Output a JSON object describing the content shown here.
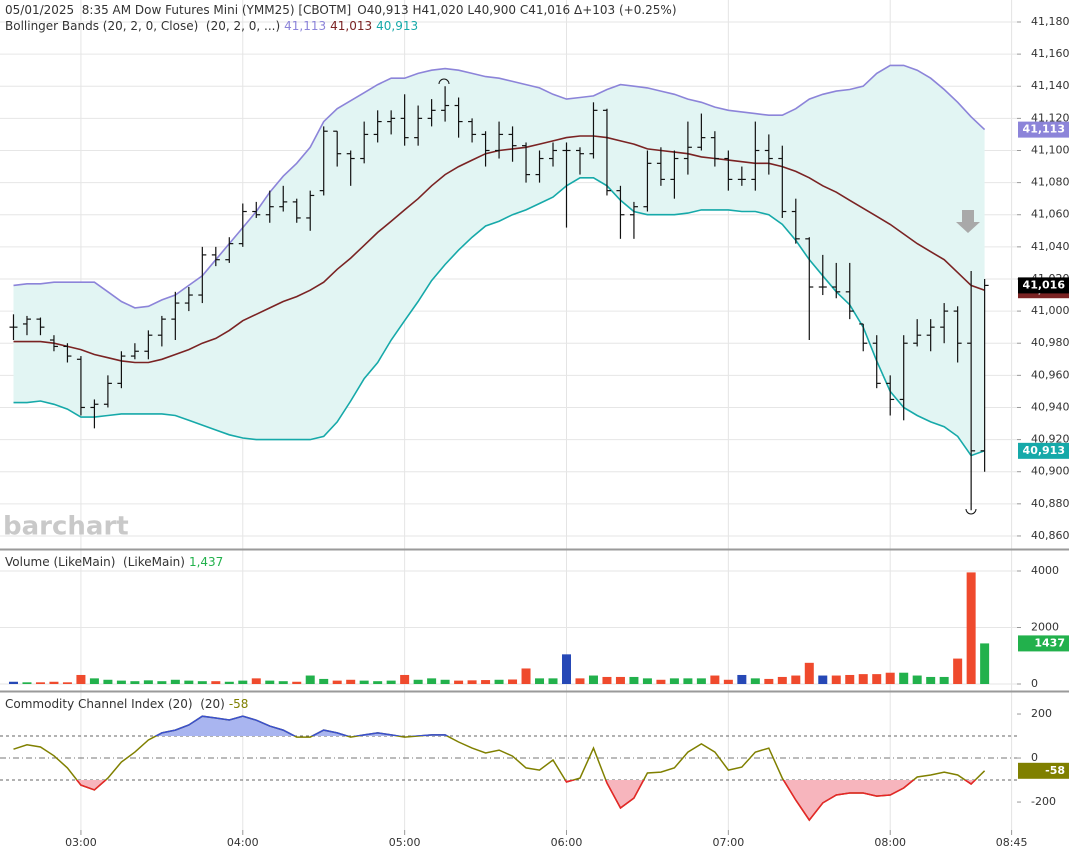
{
  "chart_data": {
    "type": "stock",
    "title": "05/01/2025  8:35 AM Dow Futures Mini (YMM25) [CBOTM]",
    "quote": "O40,913 H41,020 L40,900 C41,016 Δ+103 (+0.25%)",
    "watermark": "barchart",
    "x": [
      155,
      160,
      165,
      170,
      175,
      180,
      185,
      190,
      195,
      200,
      205,
      210,
      215,
      220,
      225,
      230,
      235,
      240,
      245,
      250,
      255,
      260,
      265,
      270,
      275,
      280,
      285,
      290,
      295,
      300,
      305,
      310,
      315,
      320,
      325,
      330,
      335,
      340,
      345,
      350,
      355,
      360,
      365,
      370,
      375,
      380,
      385,
      390,
      395,
      400,
      405,
      410,
      415,
      420,
      425,
      430,
      435,
      440,
      445,
      450,
      455,
      460,
      465,
      470,
      475,
      480,
      485,
      490,
      495,
      500,
      505,
      510,
      515
    ],
    "xlim": [
      150,
      527
    ],
    "xticks": [
      {
        "value": 180,
        "label": "03:00"
      },
      {
        "value": 240,
        "label": "04:00"
      },
      {
        "value": 300,
        "label": "05:00"
      },
      {
        "value": 360,
        "label": "06:00"
      },
      {
        "value": 420,
        "label": "07:00"
      },
      {
        "value": 480,
        "label": "08:00"
      },
      {
        "value": 525,
        "label": "08:45"
      }
    ],
    "grid": true,
    "panels": [
      {
        "type": "ohlc",
        "legend": "Bollinger Bands (20, 2, 0, Close)  (20, 2, 0, ...)",
        "color": "#111111",
        "last_label": "41,016",
        "ylim": [
          40852.5,
          41193.7
        ],
        "yticks": [
          {
            "value": 40860,
            "label": "40,860"
          },
          {
            "value": 40880,
            "label": "40,880"
          },
          {
            "value": 40900,
            "label": "40,900"
          },
          {
            "value": 40920,
            "label": "40,920"
          },
          {
            "value": 40940,
            "label": "40,940"
          },
          {
            "value": 40960,
            "label": "40,960"
          },
          {
            "value": 40980,
            "label": "40,980"
          },
          {
            "value": 41000,
            "label": "41,000"
          },
          {
            "value": 41020,
            "label": "41,020"
          },
          {
            "value": 41040,
            "label": "41,040"
          },
          {
            "value": 41060,
            "label": "41,060"
          },
          {
            "value": 41080,
            "label": "41,080"
          },
          {
            "value": 41100,
            "label": "41,100"
          },
          {
            "value": 41120,
            "label": "41,120"
          },
          {
            "value": 41140,
            "label": "41,140"
          },
          {
            "value": 41160,
            "label": "41,160"
          },
          {
            "value": 41180,
            "label": "41,180"
          }
        ],
        "open": [
          40990,
          40992,
          40995,
          40982,
          40978,
          40970,
          40940,
          40942,
          40955,
          40972,
          40975,
          40985,
          40995,
          41005,
          41010,
          41035,
          41032,
          41042,
          41062,
          41060,
          41065,
          41068,
          41058,
          41075,
          41112,
          41098,
          41095,
          41110,
          41118,
          41120,
          41108,
          41120,
          41125,
          41128,
          41118,
          41110,
          41100,
          41110,
          41103,
          41085,
          41095,
          41100,
          41100,
          41098,
          41125,
          41075,
          41060,
          41065,
          41092,
          41082,
          41095,
          41102,
          41108,
          41095,
          41082,
          41082,
          41100,
          41095,
          41062,
          41045,
          41015,
          41015,
          41012,
          40992,
          40980,
          40955,
          40945,
          40980,
          40985,
          40990,
          41000,
          40980,
          40913
        ],
        "high": [
          40998,
          40997,
          40996,
          40985,
          40980,
          40972,
          40945,
          40960,
          40975,
          40980,
          40988,
          40997,
          41012,
          41015,
          41040,
          41040,
          41046,
          41067,
          41068,
          41075,
          41078,
          41070,
          41075,
          41115,
          41112,
          41100,
          41118,
          41125,
          41125,
          41135,
          41128,
          41132,
          41140,
          41133,
          41120,
          41112,
          41118,
          41115,
          41105,
          41100,
          41105,
          41105,
          41102,
          41130,
          41126,
          41078,
          41068,
          41100,
          41102,
          41100,
          41118,
          41123,
          41112,
          41100,
          41090,
          41118,
          41110,
          41103,
          41070,
          41046,
          41035,
          41030,
          41030,
          40992,
          40985,
          40960,
          40985,
          40995,
          40995,
          41005,
          41003,
          41025,
          41020
        ],
        "low": [
          40982,
          40985,
          40985,
          40975,
          40968,
          40935,
          40927,
          40940,
          40952,
          40970,
          40970,
          40978,
          40982,
          41000,
          41005,
          41028,
          41030,
          41040,
          41058,
          41055,
          41062,
          41055,
          41050,
          41072,
          41090,
          41078,
          41092,
          41105,
          41110,
          41103,
          41103,
          41115,
          41118,
          41108,
          41105,
          41090,
          41095,
          41093,
          41080,
          41080,
          41090,
          41052,
          41085,
          41095,
          41072,
          41045,
          41045,
          41062,
          41078,
          41070,
          41085,
          41100,
          41090,
          41075,
          41078,
          41075,
          41085,
          41058,
          41042,
          40982,
          41010,
          41008,
          40995,
          40975,
          40952,
          40935,
          40932,
          40978,
          40975,
          40980,
          40968,
          40876,
          40900
        ],
        "close": [
          40990,
          40995,
          40990,
          40978,
          40972,
          40940,
          40942,
          40955,
          40972,
          40975,
          40985,
          40995,
          41005,
          41010,
          41035,
          41032,
          41042,
          41062,
          41060,
          41065,
          41068,
          41058,
          41072,
          41112,
          41098,
          41095,
          41110,
          41118,
          41120,
          41108,
          41120,
          41125,
          41128,
          41118,
          41110,
          41100,
          41110,
          41103,
          41085,
          41095,
          41100,
          41100,
          41098,
          41125,
          41075,
          41060,
          41065,
          41092,
          41082,
          41095,
          41102,
          41108,
          41095,
          41082,
          41082,
          41100,
          41095,
          41062,
          41045,
          41015,
          41015,
          41012,
          41000,
          40980,
          40955,
          40945,
          40980,
          40985,
          40990,
          41000,
          40980,
          40913,
          41016
        ],
        "band_fill": "#e2f5f3",
        "bands": [
          {
            "color": "#8c84d9",
            "last_label": "41,113",
            "values": [
              41016,
              41017,
              41017,
              41018,
              41018,
              41018,
              41018,
              41012,
              41006,
              41002,
              41003,
              41007,
              41010,
              41016,
              41022,
              41032,
              41042,
              41052,
              41062,
              41074,
              41084,
              41092,
              41102,
              41118,
              41126,
              41131,
              41136,
              41141,
              41145,
              41145,
              41148,
              41150,
              41151,
              41150,
              41148,
              41146,
              41145,
              41143,
              41141,
              41139,
              41135,
              41132,
              41133,
              41134,
              41138,
              41141,
              41140,
              41139,
              41137,
              41135,
              41132,
              41130,
              41127,
              41125,
              41124,
              41123,
              41122,
              41122,
              41126,
              41132,
              41135,
              41137,
              41138,
              41140,
              41148,
              41153,
              41153,
              41150,
              41145,
              41138,
              41130,
              41121,
              41113
            ]
          },
          {
            "color": "#7a2323",
            "last_label": "41,013",
            "values": [
              40981,
              40981,
              40981,
              40980,
              40978,
              40976,
              40973,
              40971,
              40969,
              40968,
              40968,
              40970,
              40973,
              40976,
              40980,
              40983,
              40988,
              40994,
              40998,
              41002,
              41006,
              41009,
              41013,
              41018,
              41026,
              41033,
              41041,
              41049,
              41056,
              41063,
              41070,
              41078,
              41085,
              41090,
              41094,
              41098,
              41100,
              41101,
              41102,
              41104,
              41106,
              41108,
              41109,
              41109,
              41108,
              41106,
              41104,
              41101,
              41100,
              41099,
              41098,
              41096,
              41095,
              41094,
              41093,
              41092,
              41092,
              41090,
              41087,
              41083,
              41078,
              41074,
              41069,
              41064,
              41059,
              41054,
              41048,
              41042,
              41037,
              41032,
              41024,
              41016,
              41013
            ]
          },
          {
            "color": "#16a9a9",
            "last_label": "40,913",
            "values": [
              40943,
              40943,
              40944,
              40942,
              40939,
              40934,
              40934,
              40935,
              40936,
              40936,
              40936,
              40936,
              40935,
              40932,
              40929,
              40926,
              40923,
              40921,
              40920,
              40920,
              40920,
              40920,
              40920,
              40922,
              40931,
              40944,
              40958,
              40968,
              40982,
              40994,
              41006,
              41019,
              41029,
              41038,
              41046,
              41053,
              41056,
              41060,
              41063,
              41067,
              41071,
              41078,
              41083,
              41083,
              41078,
              41069,
              41062,
              41060,
              41060,
              41060,
              41061,
              41063,
              41063,
              41063,
              41062,
              41062,
              41060,
              41054,
              41044,
              41032,
              41022,
              41012,
              41004,
              40990,
              40969,
              40950,
              40940,
              40935,
              40931,
              40928,
              40922,
              40910,
              40913
            ]
          }
        ]
      },
      {
        "type": "bar",
        "legend": "Volume (LikeMain)  (LikeMain)",
        "last_label": "1,437",
        "up_color": "#22b14c",
        "down_color": "#ef4a2d",
        "flat_color": "#2648b6",
        "ylim": [
          -212,
          4637
        ],
        "yticks": [
          0,
          2000,
          4000
        ],
        "values": [
          80,
          60,
          60,
          80,
          60,
          320,
          200,
          150,
          120,
          100,
          130,
          100,
          150,
          120,
          100,
          100,
          80,
          120,
          200,
          120,
          100,
          80,
          300,
          180,
          120,
          150,
          120,
          100,
          120,
          320,
          150,
          200,
          150,
          120,
          130,
          140,
          150,
          160,
          550,
          200,
          200,
          1050,
          200,
          300,
          250,
          250,
          250,
          200,
          150,
          200,
          200,
          200,
          300,
          150,
          320,
          200,
          180,
          250,
          300,
          750,
          300,
          300,
          320,
          350,
          350,
          400,
          400,
          300,
          250,
          250,
          900,
          3950,
          1437
        ]
      },
      {
        "type": "line",
        "legend": "Commodity Channel Index (20)  (20)",
        "color": "#808000",
        "high_color": "#3a4fd0",
        "high_fill": "#a9b5f0",
        "low_color": "#e8232a",
        "low_fill": "#f7b5bd",
        "levels": [
          100,
          -100
        ],
        "ylim": [
          -327,
          295.5
        ],
        "yticks": [
          200,
          0,
          -200
        ],
        "values": [
          40,
          60,
          50,
          10,
          -45,
          -123,
          -145,
          -91,
          -18,
          27,
          82,
          114,
          127,
          150,
          190,
          182,
          173,
          190,
          172,
          145,
          127,
          95,
          95,
          127,
          114,
          95,
          105,
          114,
          105,
          95,
          100,
          105,
          105,
          73,
          45,
          23,
          36,
          9,
          -45,
          -55,
          -9,
          -109,
          -91,
          45,
          -114,
          -227,
          -182,
          -68,
          -64,
          -45,
          27,
          64,
          27,
          -55,
          -41,
          27,
          45,
          -91,
          -191,
          -282,
          -204,
          -168,
          -159,
          -159,
          -173,
          -168,
          -136,
          -86,
          -77,
          -64,
          -77,
          -118,
          -58
        ]
      }
    ]
  }
}
